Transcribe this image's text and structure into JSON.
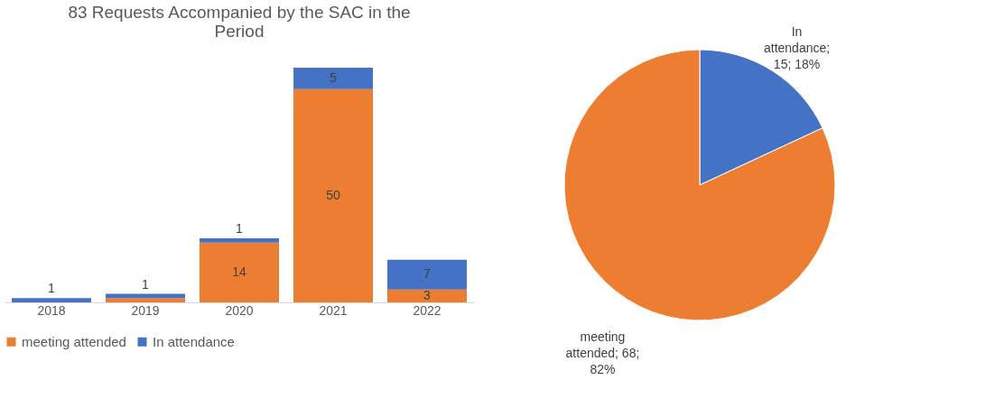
{
  "chart_data": [
    {
      "type": "bar",
      "title": "83 Requests Accompanied by the SAC in the Period",
      "categories": [
        "2018",
        "2019",
        "2020",
        "2021",
        "2022"
      ],
      "stacked": true,
      "legend": "bottom",
      "grid": false,
      "tick_labels": "x",
      "series": [
        {
          "name": "meeting attended",
          "color": "#ed7d31",
          "values": [
            0,
            1,
            14,
            50,
            3
          ],
          "value_labels": [
            null,
            null,
            "14",
            "50",
            "3"
          ]
        },
        {
          "name": "In attendance",
          "color": "#4472c4",
          "values": [
            1,
            1,
            1,
            5,
            7
          ],
          "value_labels": [
            "1",
            "1",
            "1",
            "5",
            "7"
          ]
        }
      ]
    },
    {
      "type": "pie",
      "categories": [
        "In attendance",
        "meeting attended"
      ],
      "values": [
        15,
        68
      ],
      "colors": [
        "#4472c4",
        "#ed7d31"
      ],
      "value_labels": [
        "; 15; 18%",
        "; 68; 82%"
      ],
      "legend": false
    }
  ]
}
